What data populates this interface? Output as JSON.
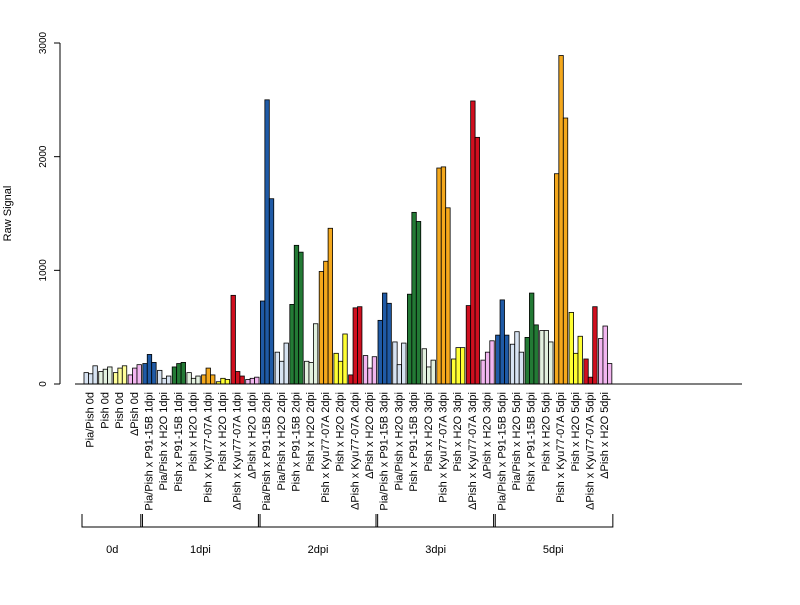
{
  "chart_data": {
    "type": "bar",
    "ylabel": "Raw Signal",
    "ylim": [
      0,
      3000
    ],
    "yticks": [
      0,
      1000,
      2000,
      3000
    ],
    "grid": false,
    "categories": [
      "Pia/Pish 0d",
      "Pish 0d",
      "Pish 0d",
      "ΔPish 0d",
      "Pia/Pish x P91-15B 1dpi",
      "Pia/Pish x H2O 1dpi",
      "Pish x P91-15B 1dpi",
      "Pish x H2O 1dpi",
      "Pish x Kyu77-07A 1dpi",
      "Pish x H2O 1dpi",
      "ΔPish x Kyu77-07A 1dpi",
      "ΔPish x H2O 1dpi",
      "Pia/Pish x P91-15B 2dpi",
      "Pia/Pish x H2O 2dpi",
      "Pish x P91-15B 2dpi",
      "Pish x H2O 2dpi",
      "Pish x Kyu77-07A 2dpi",
      "Pish x H2O 2dpi",
      "ΔPish x Kyu77-07A 2dpi",
      "ΔPish x H2O 2dpi",
      "Pia/Pish x P91-15B 3dpi",
      "Pia/Pish x H2O 3dpi",
      "Pish x P91-15B 3dpi",
      "Pish x H2O 3dpi",
      "Pish x Kyu77-07A 3dpi",
      "Pish x H2O 3dpi",
      "ΔPish x Kyu77-07A 3dpi",
      "ΔPish x H2O 3dpi",
      "Pia/Pish x P91-15B 5dpi",
      "Pia/Pish x H2O 5dpi",
      "Pish x P91-15B 5dpi",
      "Pish x H2O 5dpi",
      "Pish x Kyu77-07A 5dpi",
      "Pish x H2O 5dpi",
      "ΔPish x Kyu77-07A 5dpi",
      "ΔPish x H2O 5dpi"
    ],
    "colors": [
      "#d7e3f2",
      "#e3f1df",
      "#ffff99",
      "#f2b6f0",
      "#1f5aa6",
      "#d7e3f2",
      "#237a35",
      "#e3f1df",
      "#f4a81c",
      "#ffff33",
      "#d00f1f",
      "#f2b6f0",
      "#1f5aa6",
      "#d7e3f2",
      "#237a35",
      "#e3f1df",
      "#f4a81c",
      "#ffff33",
      "#d00f1f",
      "#f2b6f0",
      "#1f5aa6",
      "#d7e3f2",
      "#237a35",
      "#e3f1df",
      "#f4a81c",
      "#ffff33",
      "#d00f1f",
      "#f2b6f0",
      "#1f5aa6",
      "#d7e3f2",
      "#237a35",
      "#e3f1df",
      "#f4a81c",
      "#ffff33",
      "#d00f1f",
      "#f2b6f0"
    ],
    "replicates": [
      [
        100,
        90,
        160
      ],
      [
        110,
        130,
        150
      ],
      [
        100,
        140,
        160
      ],
      [
        80,
        140,
        170
      ],
      [
        180,
        260,
        190
      ],
      [
        120,
        50,
        70
      ],
      [
        150,
        180,
        190
      ],
      [
        100,
        50,
        70
      ],
      [
        80,
        140,
        80
      ],
      [
        20,
        50,
        40
      ],
      [
        780,
        110,
        70
      ],
      [
        40,
        50,
        60
      ],
      [
        730,
        2500,
        1630
      ],
      [
        280,
        200,
        360
      ],
      [
        700,
        1220,
        1160
      ],
      [
        200,
        190,
        530
      ],
      [
        990,
        1080,
        1370
      ],
      [
        270,
        200,
        440
      ],
      [
        80,
        670,
        680
      ],
      [
        250,
        140,
        240
      ],
      [
        560,
        800,
        710
      ],
      [
        370,
        170,
        360
      ],
      [
        790,
        1510,
        1430
      ],
      [
        310,
        150,
        210
      ],
      [
        1900,
        1910,
        1550
      ],
      [
        220,
        320,
        320
      ],
      [
        690,
        2490,
        2170
      ],
      [
        210,
        280,
        380
      ],
      [
        430,
        740,
        430
      ],
      [
        350,
        460,
        280
      ],
      [
        410,
        800,
        520
      ],
      [
        470,
        470,
        370
      ],
      [
        1850,
        2890,
        2340
      ],
      [
        630,
        270,
        420
      ],
      [
        220,
        60,
        680
      ],
      [
        400,
        510,
        180
      ]
    ],
    "groups": [
      {
        "label": "0d",
        "start": 0,
        "end": 3
      },
      {
        "label": "1dpi",
        "start": 4,
        "end": 11
      },
      {
        "label": "2dpi",
        "start": 12,
        "end": 19
      },
      {
        "label": "3dpi",
        "start": 20,
        "end": 27
      },
      {
        "label": "5dpi",
        "start": 28,
        "end": 35
      }
    ]
  }
}
